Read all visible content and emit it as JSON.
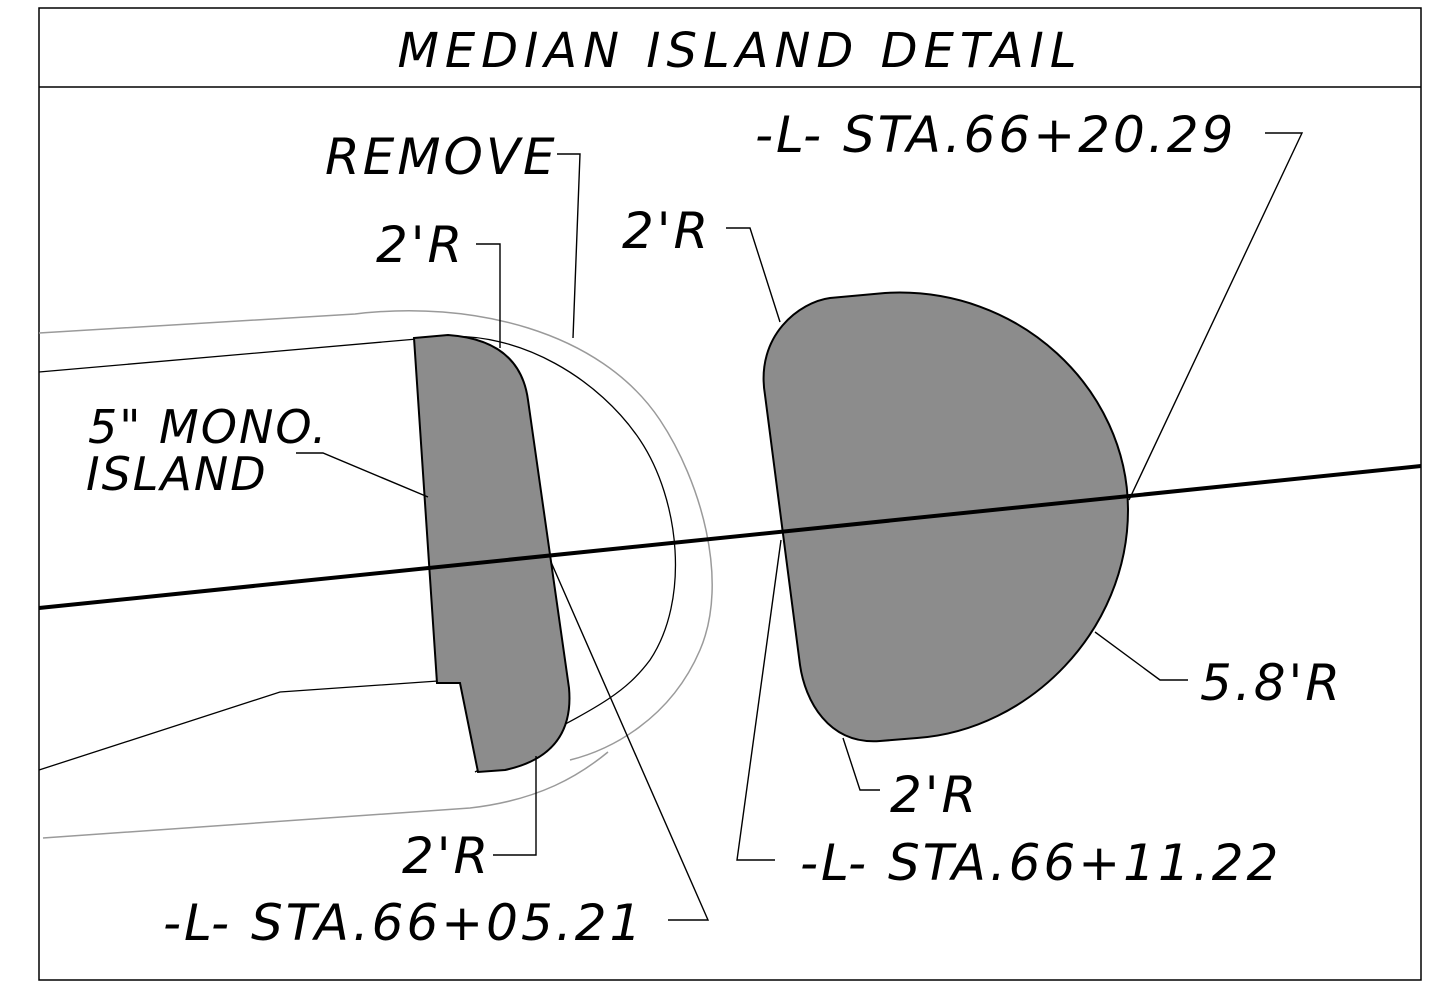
{
  "title": "MEDIAN ISLAND DETAIL",
  "labels": {
    "remove": "REMOVE",
    "island_line1": "5\" MONO.",
    "island_line2": "ISLAND",
    "radius_left_top": "2'R",
    "radius_left_bottom": "2'R",
    "radius_right_top": "2'R",
    "radius_right_bottom": "2'R",
    "radius_right_large": "5.8'R",
    "station_1": "-L- STA.66+05.21",
    "station_2": "-L- STA.66+11.22",
    "station_3": "-L- STA.66+20.29"
  },
  "colors": {
    "island_fill": "#8c8c8c",
    "existing_line": "#9a9a9a",
    "line": "#000000"
  }
}
